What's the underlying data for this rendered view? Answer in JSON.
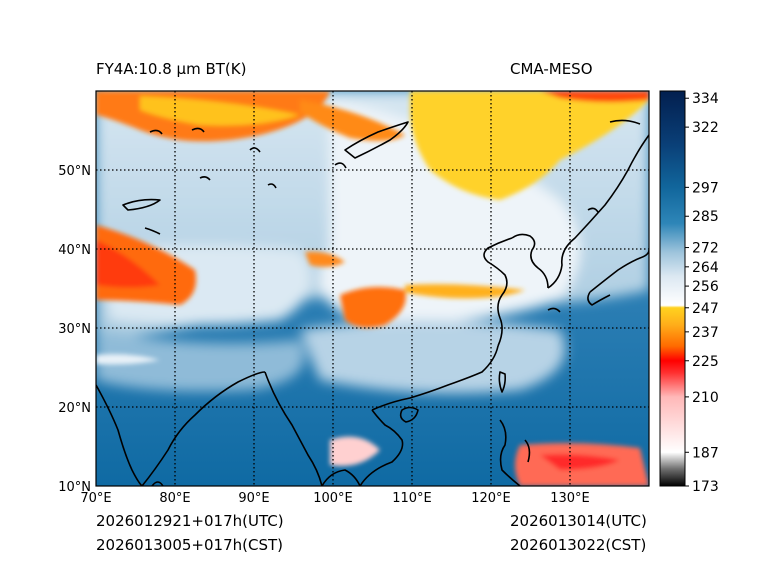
{
  "header": {
    "product_label": "FY4A:10.8 µm BT(K)",
    "source_label": "CMA-MESO"
  },
  "map": {
    "lon_range": [
      70,
      140
    ],
    "lat_range": [
      10,
      60
    ],
    "lon_ticks": [
      70,
      80,
      90,
      100,
      110,
      120,
      130
    ],
    "lat_ticks": [
      10,
      20,
      30,
      40,
      50
    ],
    "lon_tick_labels": [
      "70°E",
      "80°E",
      "90°E",
      "100°E",
      "110°E",
      "120°E",
      "130°E"
    ],
    "lat_tick_labels": [
      "10°N",
      "20°N",
      "30°N",
      "40°N",
      "50°N"
    ]
  },
  "colorbar": {
    "vmin": 173,
    "vmax": 337,
    "tick_labels": [
      "173",
      "187",
      "210",
      "225",
      "237",
      "247",
      "256",
      "264",
      "272",
      "285",
      "297",
      "322",
      "334"
    ],
    "stops": [
      {
        "v": 173,
        "c": "#000000"
      },
      {
        "v": 180,
        "c": "#6e6e6e"
      },
      {
        "v": 187,
        "c": "#ffffff"
      },
      {
        "v": 210,
        "c": "#ffb8b8"
      },
      {
        "v": 220,
        "c": "#ff3030"
      },
      {
        "v": 225,
        "c": "#ff0000"
      },
      {
        "v": 231,
        "c": "#ff6a00"
      },
      {
        "v": 240,
        "c": "#ffae1a"
      },
      {
        "v": 247,
        "c": "#ffd21f"
      },
      {
        "v": 248,
        "c": "#ffffff"
      },
      {
        "v": 260,
        "c": "#dce8f2"
      },
      {
        "v": 270,
        "c": "#9ec4dc"
      },
      {
        "v": 282,
        "c": "#2e86b8"
      },
      {
        "v": 297,
        "c": "#11669c"
      },
      {
        "v": 315,
        "c": "#0a3f77"
      },
      {
        "v": 337,
        "c": "#021f4f"
      }
    ]
  },
  "footer": {
    "init_utc": "2026012921+017h(UTC)",
    "init_cst": "2026013005+017h(CST)",
    "valid_utc": "2026013014(UTC)",
    "valid_cst": "2026013022(CST)"
  }
}
